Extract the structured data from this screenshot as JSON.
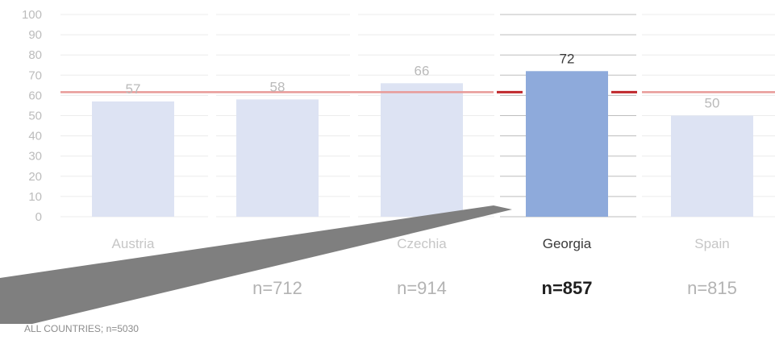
{
  "chart_data": {
    "type": "bar",
    "categories": [
      "Austria",
      "",
      "Czechia",
      "Georgia",
      "Spain"
    ],
    "values": [
      57,
      58,
      66,
      72,
      50
    ],
    "sample_sizes": [
      "",
      "n=712",
      "n=914",
      "n=857",
      "n=815"
    ],
    "highlighted_category": "Georgia",
    "reference_line": 62,
    "ylim": [
      0,
      100
    ],
    "yticks": [
      0,
      10,
      20,
      30,
      40,
      50,
      60,
      70,
      80,
      90,
      100
    ],
    "grid": true,
    "title": "",
    "xlabel": "",
    "ylabel": ""
  },
  "colors": {
    "bar_muted": "#dde3f3",
    "bar_highlight": "#8eaadb",
    "reference_line": "#e89a98",
    "reference_line_highlight": "#c0282d",
    "overlay_arrow": "#7f7f7f"
  },
  "footer": {
    "note": "ALL COUNTRIES; n=5030"
  }
}
